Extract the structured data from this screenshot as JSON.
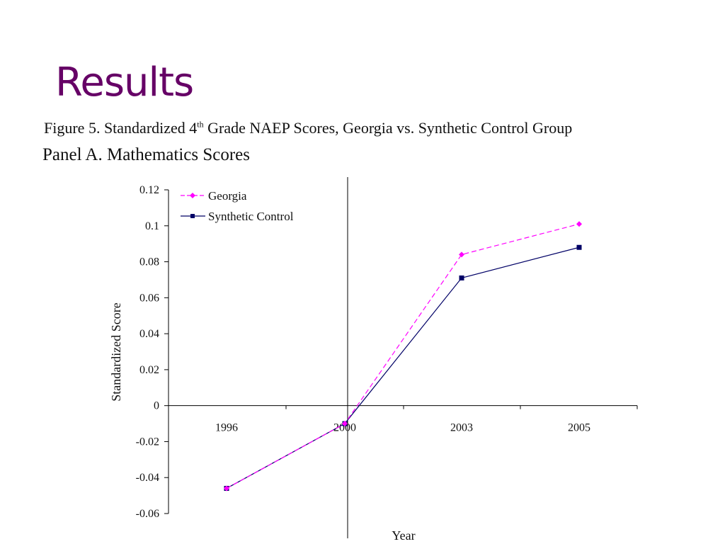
{
  "slide": {
    "title": "Results"
  },
  "figure": {
    "caption_prefix": "Figure 5.   Standardized 4",
    "caption_sup": "th",
    "caption_suffix": " Grade NAEP Scores, Georgia vs. Synthetic Control Group",
    "panel": "Panel A. Mathematics Scores"
  },
  "chart_data": {
    "type": "line",
    "categories": [
      "1996",
      "2000",
      "2003",
      "2005"
    ],
    "series": [
      {
        "name": "Georgia",
        "values": [
          -0.046,
          -0.01,
          0.084,
          0.101
        ],
        "color": "#ff00ff",
        "line": "dashed",
        "marker": "diamond"
      },
      {
        "name": "Synthetic Control",
        "values": [
          -0.046,
          -0.01,
          0.071,
          0.088
        ],
        "color": "#000066",
        "line": "solid",
        "marker": "square"
      }
    ],
    "xlabel": "Year",
    "ylabel": "Standardized Score",
    "ylim": [
      -0.06,
      0.12
    ],
    "yticks": [
      0.12,
      0.1,
      0.08,
      0.06,
      0.04,
      0.02,
      0,
      -0.02,
      -0.04,
      -0.06
    ],
    "ytick_labels": [
      "0.12",
      "0.1",
      "0.08",
      "0.06",
      "0.04",
      "0.02",
      "0",
      "-0.02",
      "-0.04",
      "-0.06"
    ],
    "reference_line_at": "2000",
    "legend_position": "top-left",
    "grid": false
  }
}
